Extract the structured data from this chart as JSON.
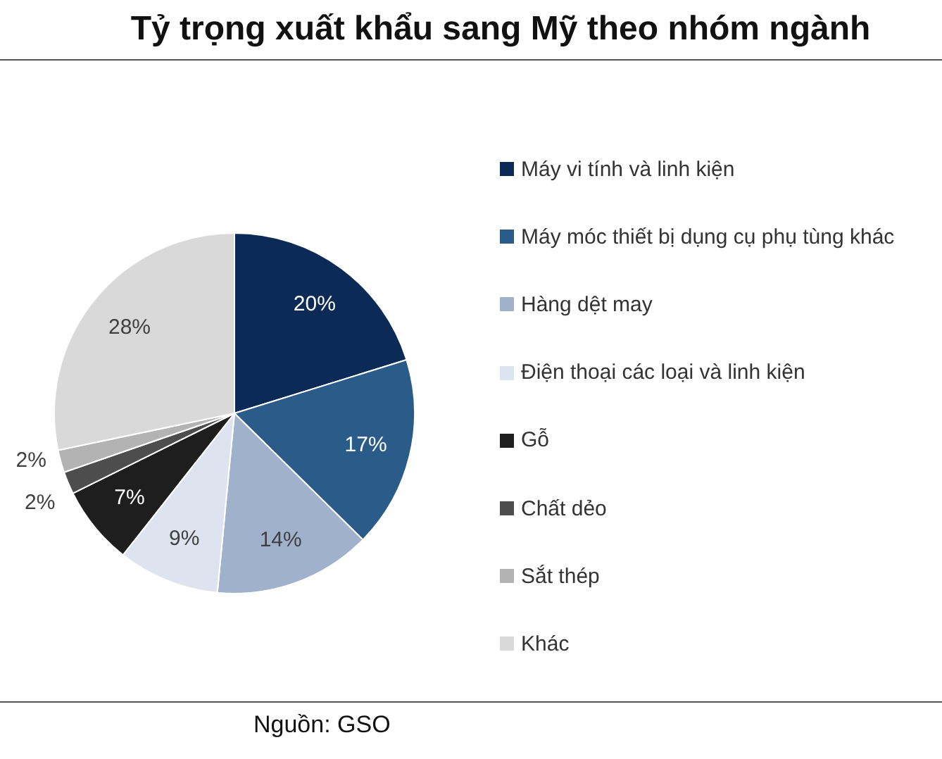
{
  "chart_data": {
    "type": "pie",
    "title": "Tỷ trọng xuất khẩu sang Mỹ theo nhóm ngành",
    "categories": [
      "Máy vi tính và linh kiện",
      "Máy móc thiết bị dụng cụ phụ tùng khác",
      "Hàng dệt may",
      "Điện thoại các loại và linh kiện",
      "Gỗ",
      "Chất dẻo",
      "Sắt thép",
      "Khác"
    ],
    "values": [
      20,
      17,
      14,
      9,
      7,
      2,
      2,
      28
    ],
    "colors": [
      "#0b2b56",
      "#2b5b88",
      "#a0b1cc",
      "#dde3ef",
      "#1e1e1e",
      "#4d4d4d",
      "#b3b3b3",
      "#d9d9d9"
    ],
    "value_labels": [
      "20%",
      "17%",
      "14%",
      "9%",
      "7%",
      "2%",
      "2%",
      "28%"
    ],
    "legend": "right",
    "annotations": [
      "Nguồn: GSO"
    ]
  }
}
